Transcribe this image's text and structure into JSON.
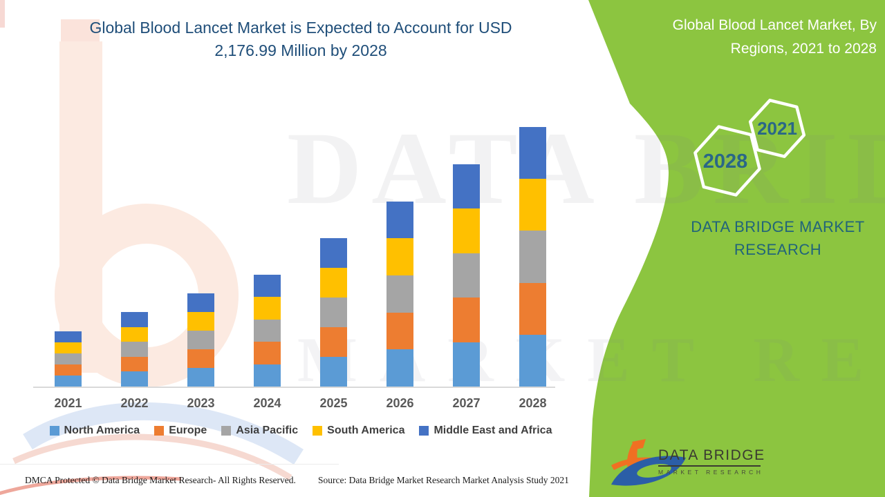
{
  "title": {
    "line1": "Global Blood Lancet Market is Expected to Account for USD",
    "line2": "2,176.99 Million by 2028"
  },
  "side_panel": {
    "heading_line1": "Global Blood Lancet Market, By",
    "heading_line2": "Regions, 2021 to 2028",
    "hexagons": [
      {
        "label": "2021"
      },
      {
        "label": "2028"
      }
    ],
    "brand_line1": "DATA BRIDGE MARKET",
    "brand_line2": "RESEARCH",
    "panel_color": "#8cc540",
    "hexagon_text_color": "#2a6787",
    "brand_text_color": "#21647a"
  },
  "watermark": {
    "row1": "DATA BRIDGE",
    "row2": "MARKET RESEARCH"
  },
  "logo": {
    "name": "DATA BRIDGE",
    "subtitle": "MARKET RESEARCH"
  },
  "footer": {
    "left": "DMCA Protected © Data Bridge Market Research- All Rights Reserved.",
    "right": "Source: Data Bridge Market Research Market Analysis Study 2021"
  },
  "chart_data": {
    "type": "bar",
    "stacked": true,
    "unit": "USD Million",
    "title": "Global Blood Lancet Market is Expected to Account for USD 2,176.99 Million by 2028",
    "categories": [
      "2021",
      "2022",
      "2023",
      "2024",
      "2025",
      "2026",
      "2027",
      "2028"
    ],
    "series": [
      {
        "name": "North America",
        "color": "#5b9bd5",
        "values": [
          92.8,
          124.6,
          156.6,
          187.8,
          249.2,
          310.8,
          372.8,
          435.4
        ]
      },
      {
        "name": "Europe",
        "color": "#ed7d31",
        "values": [
          92.8,
          124.6,
          156.6,
          187.8,
          249.2,
          310.8,
          372.8,
          435.4
        ]
      },
      {
        "name": "Asia Pacific",
        "color": "#a5a5a5",
        "values": [
          92.8,
          124.6,
          156.6,
          187.8,
          249.2,
          310.8,
          372.8,
          435.4
        ]
      },
      {
        "name": "South America",
        "color": "#ffc000",
        "values": [
          92.8,
          124.6,
          156.6,
          187.8,
          249.2,
          310.8,
          372.8,
          435.4
        ]
      },
      {
        "name": "Middle East and Africa",
        "color": "#4472c4",
        "values": [
          92.8,
          124.6,
          156.6,
          187.8,
          249.2,
          310.8,
          372.8,
          435.4
        ]
      }
    ],
    "totals_estimated": [
      464,
      623,
      783,
      939,
      1246,
      1554,
      1864,
      2176.99
    ],
    "ylim": [
      0,
      2300
    ],
    "grid": false,
    "y_axis_hidden": true,
    "legend_position": "bottom"
  }
}
